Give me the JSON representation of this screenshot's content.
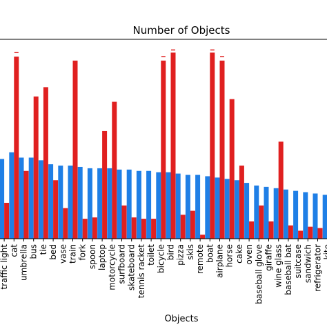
{
  "chart_data": {
    "type": "bar",
    "title": "Number of Objects",
    "xlabel": "Objects",
    "ylabel": "",
    "ylim": [
      0,
      150
    ],
    "grid": false,
    "categories": [
      "traffic light",
      "cat",
      "umbrella",
      "bus",
      "tie",
      "bed",
      "vase",
      "train",
      "fork",
      "spoon",
      "laptop",
      "motorcycle",
      "surfboard",
      "skateboard",
      "tennis racket",
      "toilet",
      "bicycle",
      "bird",
      "pizza",
      "skis",
      "remote",
      "boat",
      "airplane",
      "horse",
      "cake",
      "oven",
      "baseball glove",
      "giraffe",
      "wine glass",
      "baseball bat",
      "suitcase",
      "sandwich",
      "refrigerator",
      "kite"
    ],
    "series": [
      {
        "color": "#1f7fe6",
        "values": [
          60,
          65,
          61,
          61,
          59,
          56,
          55,
          55,
          54,
          53,
          53,
          53,
          52,
          52,
          51,
          51,
          50,
          50,
          49,
          48,
          48,
          47,
          46,
          45,
          44,
          42,
          40,
          39,
          38,
          37,
          36,
          35,
          34,
          33
        ]
      },
      {
        "color": "#e02020",
        "values": [
          27,
          137,
          51,
          107,
          114,
          44,
          23,
          134,
          15,
          16,
          81,
          103,
          25,
          16,
          15,
          15,
          134,
          140,
          18,
          21,
          3,
          140,
          134,
          105,
          55,
          13,
          25,
          13,
          73,
          10,
          6,
          9,
          8,
          5
        ]
      }
    ],
    "error_bars": [
      {
        "series": 1,
        "category": "cat",
        "value": 140
      },
      {
        "series": 1,
        "category": "bicycle",
        "value": 137
      },
      {
        "series": 1,
        "category": "bird",
        "value": 142
      },
      {
        "series": 1,
        "category": "boat",
        "value": 142
      },
      {
        "series": 1,
        "category": "airplane",
        "value": 137
      }
    ]
  }
}
